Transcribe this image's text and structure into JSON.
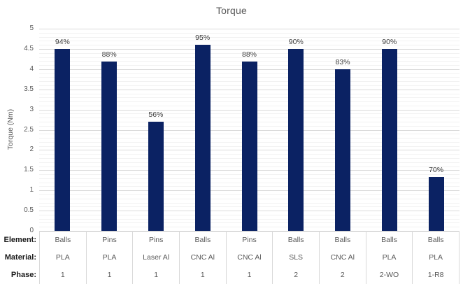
{
  "title": "Torque",
  "y_axis": {
    "label": "Torque (Nm)",
    "ticks": [
      "5",
      "4.5",
      "4",
      "3.5",
      "3",
      "2.5",
      "2",
      "1.5",
      "1",
      "0.5",
      "0"
    ]
  },
  "table": {
    "row_headers": [
      "Element:",
      "Material:",
      "Phase:"
    ]
  },
  "colors": {
    "bar": "#0b2263",
    "title_text": "#595959",
    "axis_text": "#595959",
    "bar_label_text": "#404040",
    "major_gridline": "#d9d9d9",
    "minor_gridline": "#f2f2f2",
    "axis_line": "#bfbfbf",
    "table_border": "#d9d9d9",
    "row_header_text": "#1a1a1a"
  },
  "chart_data": {
    "type": "bar",
    "title": "Torque",
    "xlabel": "",
    "ylabel": "Torque (Nm)",
    "ylim": [
      0,
      5
    ],
    "major_gridline_step": 0.5,
    "minor_gridline_step": 0.1,
    "grid": "on",
    "legend": "none",
    "categories": [
      {
        "element": "Balls",
        "material": "PLA",
        "phase": "1"
      },
      {
        "element": "Pins",
        "material": "PLA",
        "phase": "1"
      },
      {
        "element": "Pins",
        "material": "Laser Al",
        "phase": "1"
      },
      {
        "element": "Balls",
        "material": "CNC Al",
        "phase": "1"
      },
      {
        "element": "Pins",
        "material": "CNC Al",
        "phase": "1"
      },
      {
        "element": "Balls",
        "material": "SLS",
        "phase": "2"
      },
      {
        "element": "Balls",
        "material": "CNC Al",
        "phase": "2"
      },
      {
        "element": "Balls",
        "material": "PLA",
        "phase": "2-WO"
      },
      {
        "element": "Balls",
        "material": "PLA",
        "phase": "1-R8"
      }
    ],
    "series": [
      {
        "name": "Torque",
        "values": [
          4.5,
          4.19,
          2.7,
          4.6,
          4.19,
          4.5,
          4.0,
          4.5,
          1.33
        ],
        "data_labels": [
          "94%",
          "88%",
          "56%",
          "95%",
          "88%",
          "90%",
          "83%",
          "90%",
          "70%"
        ]
      }
    ]
  }
}
